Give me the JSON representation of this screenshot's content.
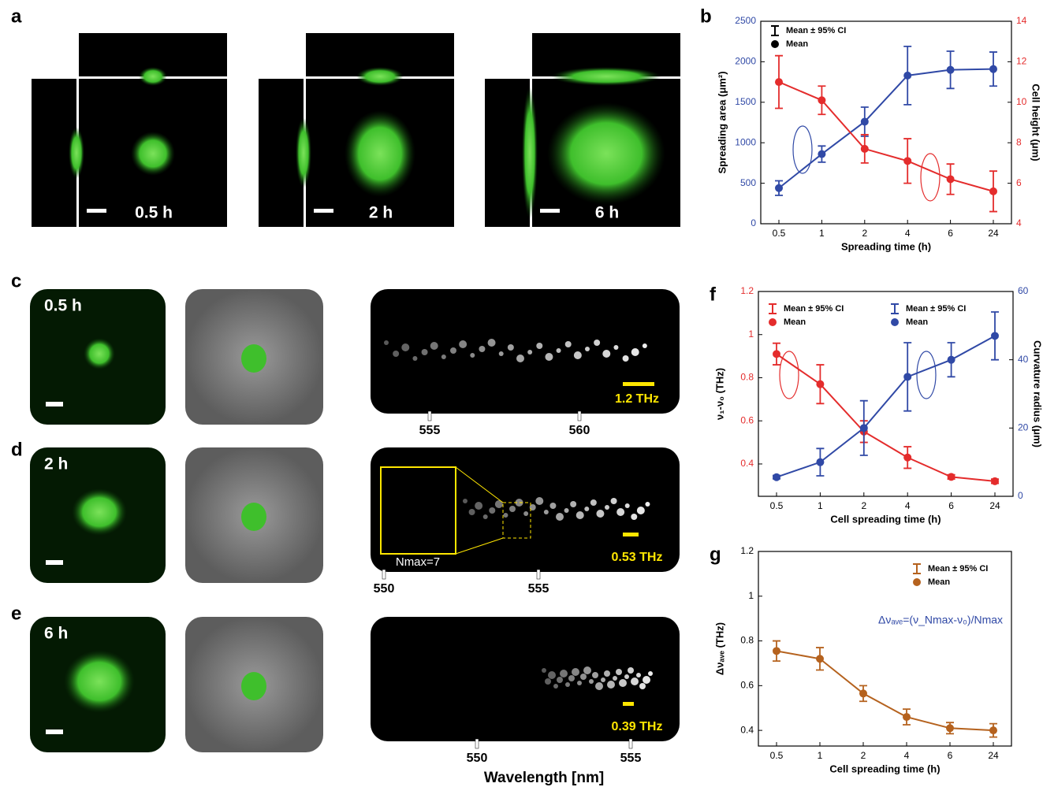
{
  "panel_letters": [
    "a",
    "b",
    "c",
    "d",
    "e",
    "f",
    "g"
  ],
  "panel_a": {
    "times": [
      "0.5 h",
      "2 h",
      "6 h"
    ]
  },
  "spectra": [
    {
      "time": "0.5 h",
      "scale": "1.2 THz",
      "ticks": [
        555,
        560
      ]
    },
    {
      "time": "2 h",
      "scale": "0.53 THz",
      "ticks": [
        550,
        555
      ],
      "inset": "Nmax=7"
    },
    {
      "time": "6 h",
      "scale": "0.39 THz",
      "ticks": [
        550,
        555
      ]
    }
  ],
  "wavelength_label": "Wavelength [nm]",
  "chart_data": [
    {
      "type": "line",
      "categories": [
        "0.5",
        "1",
        "2",
        "4",
        "6",
        "24"
      ],
      "xlabel": "Spreading time (h)",
      "ylabel": "Spreading area (μm²)",
      "y2label": "Cell height (μm)",
      "ylim": [
        0,
        2500
      ],
      "yticks": [
        0,
        500,
        1000,
        1500,
        2000,
        2500
      ],
      "y2lim": [
        4,
        14
      ],
      "y2ticks": [
        4,
        6,
        8,
        10,
        12,
        14
      ],
      "legend": {
        "color": "#000000",
        "labels": [
          "Mean ± 95% CI",
          "Mean"
        ]
      },
      "legend_loc": "upper left",
      "series": [
        {
          "color": "#3049a6",
          "values": [
            440,
            860,
            1260,
            1830,
            1900,
            1910
          ],
          "errors": [
            90,
            100,
            180,
            360,
            230,
            210
          ]
        },
        {
          "color": "#e42c2c",
          "axis": "y2",
          "values": [
            11.0,
            10.1,
            7.7,
            7.1,
            6.2,
            5.6
          ],
          "errors": [
            1.3,
            0.7,
            0.7,
            1.1,
            0.75,
            1.0
          ]
        }
      ]
    },
    {
      "type": "line",
      "categories": [
        "0.5",
        "1",
        "2",
        "4",
        "6",
        "24"
      ],
      "xlabel": "Cell spreading time (h)",
      "ylabel": "ν₁-ν₀ (THz)",
      "y2label": "Curvature radius (μm)",
      "ylim": [
        0.25,
        1.2
      ],
      "yticks": [
        0.4,
        0.6,
        0.8,
        1.0,
        1.2
      ],
      "y2lim": [
        0,
        60
      ],
      "y2ticks": [
        0,
        20,
        40,
        60
      ],
      "legend_loc": "upper left",
      "series": [
        {
          "color": "#e42c2c",
          "legend_labels": [
            "Mean ± 95% CI",
            "Mean"
          ],
          "values": [
            0.91,
            0.77,
            0.55,
            0.43,
            0.34,
            0.32
          ],
          "errors": [
            0.05,
            0.09,
            0.05,
            0.05,
            0.01,
            0.01
          ]
        },
        {
          "color": "#3049a6",
          "axis": "y2",
          "legend_labels": [
            "Mean ± 95% CI",
            "Mean"
          ],
          "values": [
            5.6,
            10,
            20,
            35,
            40,
            47
          ],
          "errors": [
            0.5,
            4,
            8,
            10,
            5,
            7
          ]
        }
      ]
    },
    {
      "type": "line",
      "categories": [
        "0.5",
        "1",
        "2",
        "4",
        "6",
        "24"
      ],
      "xlabel": "Cell spreading time (h)",
      "ylabel": "Δνₐᵥₑ (THz)",
      "ylim": [
        0.33,
        1.2
      ],
      "yticks": [
        0.4,
        0.6,
        0.8,
        1.0,
        1.2
      ],
      "legend_loc": "upper right",
      "annotation": "Δνₐᵥₑ=(ν_Nmax-ν₀)/Nmax",
      "series": [
        {
          "color": "#b5621e",
          "legend_labels": [
            "Mean ± 95% CI",
            "Mean"
          ],
          "values": [
            0.755,
            0.72,
            0.565,
            0.46,
            0.41,
            0.4
          ],
          "errors": [
            0.045,
            0.05,
            0.035,
            0.035,
            0.025,
            0.03
          ]
        }
      ]
    }
  ]
}
